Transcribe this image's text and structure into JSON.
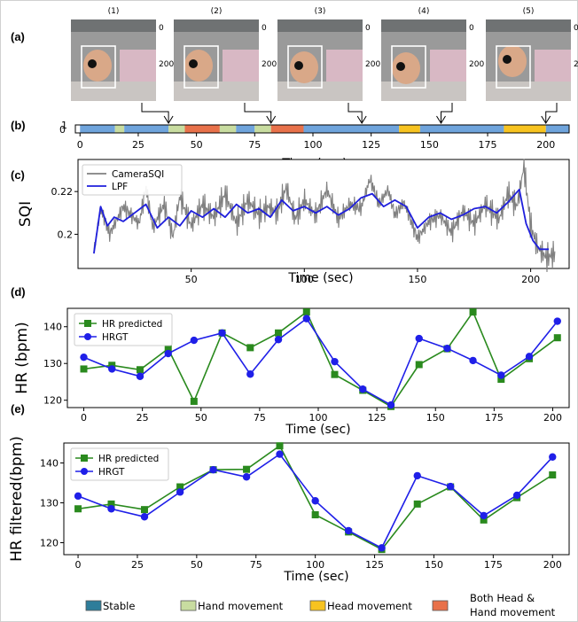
{
  "panels": {
    "a": "(a)",
    "b": "(b)",
    "c": "(c)",
    "d": "(d)",
    "e": "(e)"
  },
  "frames": {
    "labels": [
      "(1)",
      "(2)",
      "(3)",
      "(4)",
      "(5)"
    ],
    "y_ticks": [
      "0",
      "200"
    ],
    "times": [
      38,
      82,
      121,
      155,
      200
    ]
  },
  "colors": {
    "stable": "#6fa4dc",
    "stable_legend": "#2e7d9a",
    "hand": "#c8dca0",
    "head": "#f7c320",
    "both": "#e8714a",
    "raw": "#808080",
    "lpf": "#1f1fdc",
    "pred": "#2a8a1e",
    "gt": "#1f1fe8"
  },
  "chart_data": [
    {
      "id": "b",
      "type": "timeline",
      "xlabel": "Time (sec)",
      "xticks": [
        0,
        25,
        50,
        75,
        100,
        125,
        150,
        175,
        200
      ],
      "xlim": [
        -2,
        210
      ],
      "yticks": [
        "1",
        "0"
      ],
      "segments": [
        {
          "start": 0,
          "end": 15,
          "state": "stable"
        },
        {
          "start": 15,
          "end": 19,
          "state": "hand"
        },
        {
          "start": 19,
          "end": 38,
          "state": "stable"
        },
        {
          "start": 38,
          "end": 45,
          "state": "hand"
        },
        {
          "start": 45,
          "end": 60,
          "state": "both"
        },
        {
          "start": 60,
          "end": 67,
          "state": "hand"
        },
        {
          "start": 67,
          "end": 75,
          "state": "stable"
        },
        {
          "start": 75,
          "end": 82,
          "state": "hand"
        },
        {
          "start": 82,
          "end": 96,
          "state": "both"
        },
        {
          "start": 96,
          "end": 137,
          "state": "stable"
        },
        {
          "start": 137,
          "end": 146,
          "state": "head"
        },
        {
          "start": 146,
          "end": 182,
          "state": "stable"
        },
        {
          "start": 182,
          "end": 200,
          "state": "head"
        },
        {
          "start": 200,
          "end": 210,
          "state": "stable"
        }
      ]
    },
    {
      "id": "c",
      "type": "line",
      "xlabel": "Time (sec)",
      "ylabel": "SQI",
      "xlim": [
        0,
        217
      ],
      "ylim": [
        0.184,
        0.235
      ],
      "xticks": [
        50,
        100,
        150,
        200
      ],
      "yticks": [
        0.2,
        0.22
      ],
      "legend": "top-left",
      "series": [
        {
          "name": "CameraSQI",
          "x": [
            7,
            10,
            14,
            20,
            27,
            30,
            33,
            38,
            42,
            45,
            50,
            55,
            60,
            65,
            70,
            75,
            80,
            84,
            88,
            92,
            96,
            100,
            105,
            110,
            115,
            120,
            125,
            129,
            133,
            137,
            140,
            144,
            150,
            155,
            160,
            165,
            170,
            175,
            180,
            186,
            190,
            194,
            197,
            200,
            203,
            207,
            211
          ],
          "y": [
            0.192,
            0.212,
            0.2,
            0.213,
            0.205,
            0.222,
            0.203,
            0.214,
            0.199,
            0.218,
            0.204,
            0.214,
            0.208,
            0.219,
            0.205,
            0.216,
            0.209,
            0.213,
            0.21,
            0.222,
            0.207,
            0.216,
            0.209,
            0.221,
            0.207,
            0.214,
            0.212,
            0.226,
            0.214,
            0.221,
            0.209,
            0.215,
            0.198,
            0.206,
            0.209,
            0.201,
            0.211,
            0.205,
            0.214,
            0.207,
            0.219,
            0.213,
            0.232,
            0.204,
            0.194,
            0.189,
            0.191
          ]
        },
        {
          "name": "LPF",
          "x": [
            7,
            10,
            13,
            16,
            20,
            25,
            30,
            35,
            40,
            45,
            50,
            55,
            60,
            65,
            70,
            75,
            80,
            85,
            90,
            95,
            100,
            105,
            110,
            115,
            120,
            125,
            130,
            135,
            140,
            145,
            150,
            155,
            160,
            165,
            170,
            175,
            180,
            185,
            190,
            195,
            198,
            201,
            204,
            208
          ],
          "y": [
            0.191,
            0.213,
            0.204,
            0.208,
            0.206,
            0.21,
            0.214,
            0.203,
            0.208,
            0.204,
            0.211,
            0.208,
            0.212,
            0.208,
            0.214,
            0.21,
            0.212,
            0.208,
            0.216,
            0.211,
            0.213,
            0.21,
            0.213,
            0.209,
            0.212,
            0.217,
            0.219,
            0.213,
            0.216,
            0.213,
            0.203,
            0.208,
            0.21,
            0.207,
            0.209,
            0.212,
            0.213,
            0.21,
            0.215,
            0.221,
            0.205,
            0.197,
            0.193,
            0.193
          ]
        }
      ]
    },
    {
      "id": "d",
      "type": "line",
      "xlabel": "Time (sec)",
      "ylabel": "HR (bpm)",
      "xlim": [
        -7,
        207
      ],
      "ylim": [
        118,
        145
      ],
      "xticks": [
        0,
        25,
        50,
        75,
        100,
        125,
        150,
        175,
        200
      ],
      "yticks": [
        120,
        130,
        140
      ],
      "legend": "top-left",
      "series": [
        {
          "name": "HR predicted",
          "x": [
            0,
            12,
            24,
            36,
            47,
            59,
            71,
            83,
            95,
            107,
            119,
            131,
            143,
            155,
            166,
            178,
            190,
            202
          ],
          "y": [
            128.5,
            129.5,
            128.3,
            134,
            119.7,
            138.3,
            134.3,
            138.3,
            144,
            127,
            122.7,
            118.3,
            129.7,
            134,
            144,
            125.7,
            131.3,
            137
          ]
        },
        {
          "name": "HRGT",
          "x": [
            0,
            12,
            24,
            36,
            47,
            59,
            71,
            83,
            95,
            107,
            119,
            131,
            143,
            155,
            166,
            178,
            190,
            202
          ],
          "y": [
            131.7,
            128.5,
            126.5,
            132.7,
            136.3,
            138.3,
            127.1,
            136.5,
            142.2,
            130.5,
            123,
            118.7,
            136.8,
            134.1,
            130.8,
            126.8,
            131.9,
            141.5
          ]
        }
      ]
    },
    {
      "id": "e",
      "type": "line",
      "xlabel": "Time (sec)",
      "ylabel": "HR filtered(bpm)",
      "xlim": [
        -6,
        207
      ],
      "ylim": [
        117,
        145
      ],
      "xticks": [
        0,
        25,
        50,
        75,
        100,
        125,
        150,
        175,
        200
      ],
      "yticks": [
        120,
        130,
        140
      ],
      "legend": "top-left",
      "series": [
        {
          "name": "HR predicted",
          "x": [
            0,
            14,
            28,
            43,
            57,
            71,
            85,
            100,
            114,
            128,
            143,
            157,
            171,
            185,
            200
          ],
          "y": [
            128.5,
            129.7,
            128.3,
            134,
            138.3,
            138.4,
            144.3,
            127,
            122.7,
            118.3,
            129.7,
            134,
            125.7,
            131.3,
            137
          ]
        },
        {
          "name": "HRGT",
          "x": [
            0,
            14,
            28,
            43,
            57,
            71,
            85,
            100,
            114,
            128,
            143,
            157,
            171,
            185,
            200
          ],
          "y": [
            131.7,
            128.5,
            126.5,
            132.7,
            138.3,
            136.5,
            142.2,
            130.5,
            123,
            118.7,
            136.8,
            134.1,
            126.8,
            131.9,
            141.5
          ]
        }
      ]
    }
  ],
  "legend": {
    "items": [
      {
        "key": "stable",
        "label": "Stable"
      },
      {
        "key": "hand",
        "label": "Hand movement"
      },
      {
        "key": "head",
        "label": "Head movement"
      },
      {
        "key": "both",
        "label": "Both Head &",
        "label2": "Hand movement"
      }
    ]
  }
}
